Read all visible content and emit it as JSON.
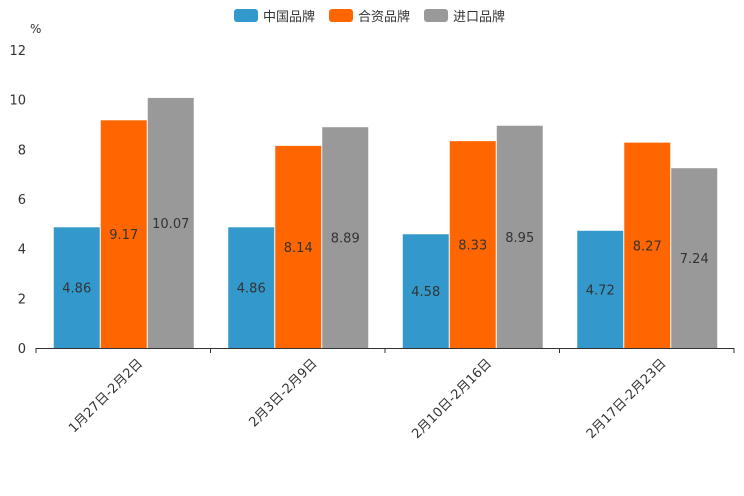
{
  "chart_data": {
    "type": "bar",
    "unit": "%",
    "categories": [
      "1月27日-2月2日",
      "2月3日-2月9日",
      "2月10日-2月16日",
      "2月17日-2月23日"
    ],
    "series": [
      {
        "name": "中国品牌",
        "color": "#3399cc",
        "values": [
          4.86,
          4.86,
          4.58,
          4.72
        ]
      },
      {
        "name": "合资品牌",
        "color": "#ff6600",
        "values": [
          9.17,
          8.14,
          8.33,
          8.27
        ]
      },
      {
        "name": "进口品牌",
        "color": "#999999",
        "values": [
          10.07,
          8.89,
          8.95,
          7.24
        ]
      }
    ],
    "ylim": [
      0,
      12
    ],
    "yticks": [
      "0",
      "2",
      "4",
      "6",
      "8",
      "10",
      "12"
    ],
    "legend_position": "top-center"
  }
}
